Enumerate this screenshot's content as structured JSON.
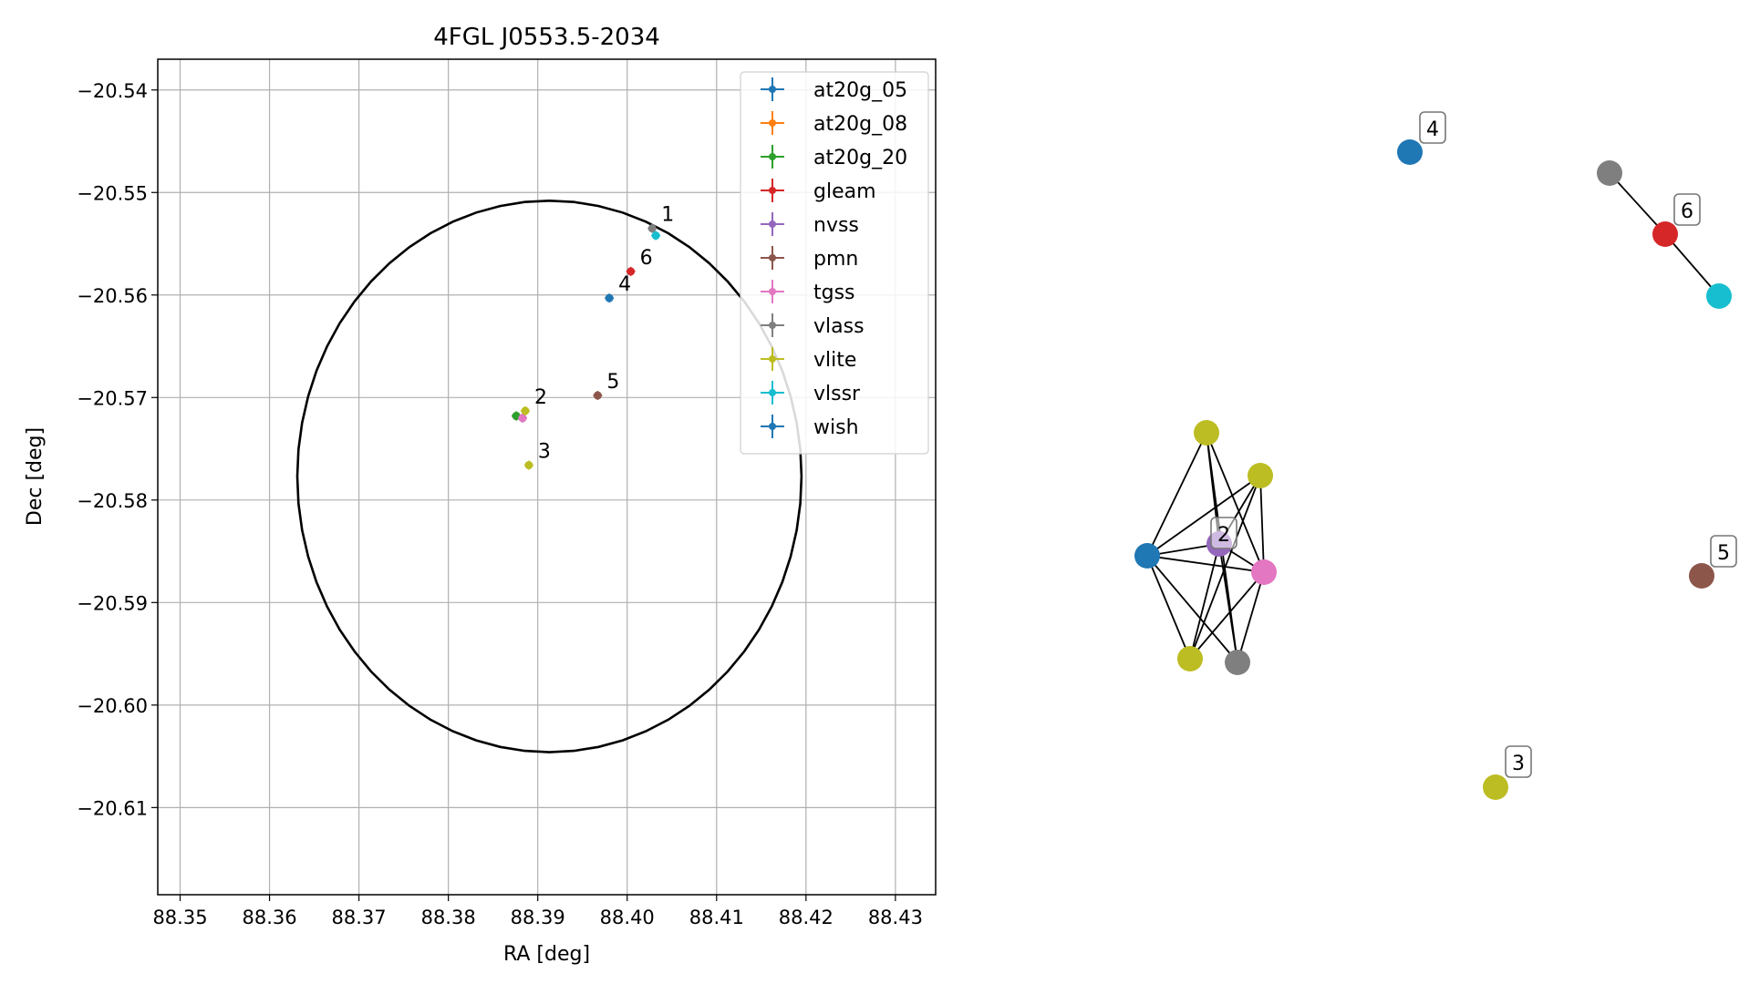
{
  "colors": {
    "at20g_05": "#1f77b4",
    "at20g_08": "#ff7f0e",
    "at20g_20": "#2ca02c",
    "gleam": "#d62728",
    "nvss": "#9467bd",
    "pmn": "#8c564b",
    "tgss": "#e377c2",
    "vlass": "#7f7f7f",
    "vlite": "#bcbd22",
    "vlssr": "#17becf",
    "wish": "#1f77b4"
  },
  "chart_data": [
    {
      "type": "scatter",
      "title": "4FGL J0553.5-2034",
      "xlabel": "RA [deg]",
      "ylabel": "Dec [deg]",
      "xlim": [
        88.3475,
        88.4345
      ],
      "ylim": [
        -20.6185,
        -20.537
      ],
      "xticks": [
        "88.35",
        "88.36",
        "88.37",
        "88.38",
        "88.39",
        "88.40",
        "88.41",
        "88.42",
        "88.43"
      ],
      "yticks": [
        "−20.54",
        "−20.55",
        "−20.56",
        "−20.57",
        "−20.58",
        "−20.59",
        "−20.60",
        "−20.61"
      ],
      "grid": true,
      "legend_position": "top-right",
      "circle": {
        "center": [
          88.3913,
          -20.5777
        ],
        "radius_ra": 0.0282,
        "radius_dec": 0.0269
      },
      "series": [
        {
          "name": "at20g_05",
          "points": [
            [
              88.3876,
              -20.5718
            ]
          ]
        },
        {
          "name": "at20g_08",
          "points": [
            [
              88.3876,
              -20.5718
            ]
          ]
        },
        {
          "name": "at20g_20",
          "points": [
            [
              88.3876,
              -20.5718
            ]
          ]
        },
        {
          "name": "gleam",
          "points": [
            [
              88.4004,
              -20.5577
            ]
          ]
        },
        {
          "name": "nvss",
          "points": [
            [
              88.3883,
              -20.572
            ]
          ]
        },
        {
          "name": "pmn",
          "points": [
            [
              88.3967,
              -20.5698
            ]
          ]
        },
        {
          "name": "tgss",
          "points": [
            [
              88.3883,
              -20.572
            ]
          ]
        },
        {
          "name": "vlass",
          "points": [
            [
              88.4028,
              -20.5535
            ]
          ]
        },
        {
          "name": "vlite",
          "points": [
            [
              88.3886,
              -20.5713
            ],
            [
              88.389,
              -20.5766
            ]
          ]
        },
        {
          "name": "vlssr",
          "points": [
            [
              88.4032,
              -20.5542
            ]
          ]
        },
        {
          "name": "wish",
          "points": [
            [
              88.398,
              -20.5603
            ]
          ]
        }
      ],
      "annotations": [
        {
          "text": "1",
          "x": 88.4028,
          "y": -20.5535
        },
        {
          "text": "2",
          "x": 88.3886,
          "y": -20.5713
        },
        {
          "text": "3",
          "x": 88.389,
          "y": -20.5766
        },
        {
          "text": "4",
          "x": 88.398,
          "y": -20.5603
        },
        {
          "text": "5",
          "x": 88.3967,
          "y": -20.5698
        },
        {
          "text": "6",
          "x": 88.4004,
          "y": -20.5577
        }
      ]
    },
    {
      "type": "network",
      "nodes": [
        {
          "id": "n4",
          "color": "#1f77b4",
          "label": "4"
        },
        {
          "id": "n1g",
          "color": "#7f7f7f"
        },
        {
          "id": "n6",
          "color": "#d62728",
          "label": "6"
        },
        {
          "id": "n1c",
          "color": "#17becf"
        },
        {
          "id": "n2a",
          "color": "#bcbd22"
        },
        {
          "id": "n2b",
          "color": "#bcbd22"
        },
        {
          "id": "n2c",
          "color": "#1f77b4"
        },
        {
          "id": "n2d",
          "color": "#9467bd",
          "label": "2"
        },
        {
          "id": "n2e",
          "color": "#e377c2"
        },
        {
          "id": "n2f",
          "color": "#bcbd22"
        },
        {
          "id": "n2g",
          "color": "#7f7f7f"
        },
        {
          "id": "n5",
          "color": "#8c564b",
          "label": "5"
        },
        {
          "id": "n3",
          "color": "#bcbd22",
          "label": "3"
        }
      ],
      "edges": [
        [
          "n1g",
          "n6"
        ],
        [
          "n6",
          "n1c"
        ],
        [
          "n2c",
          "n2a"
        ],
        [
          "n2c",
          "n2b"
        ],
        [
          "n2c",
          "n2d"
        ],
        [
          "n2c",
          "n2e"
        ],
        [
          "n2c",
          "n2f"
        ],
        [
          "n2c",
          "n2g"
        ],
        [
          "n2a",
          "n2d"
        ],
        [
          "n2a",
          "n2e"
        ],
        [
          "n2a",
          "n2g"
        ],
        [
          "n2b",
          "n2d"
        ],
        [
          "n2b",
          "n2e"
        ],
        [
          "n2b",
          "n2f"
        ],
        [
          "n2d",
          "n2e"
        ],
        [
          "n2d",
          "n2f"
        ],
        [
          "n2d",
          "n2g"
        ],
        [
          "n2e",
          "n2f"
        ],
        [
          "n2e",
          "n2g"
        ]
      ]
    }
  ]
}
